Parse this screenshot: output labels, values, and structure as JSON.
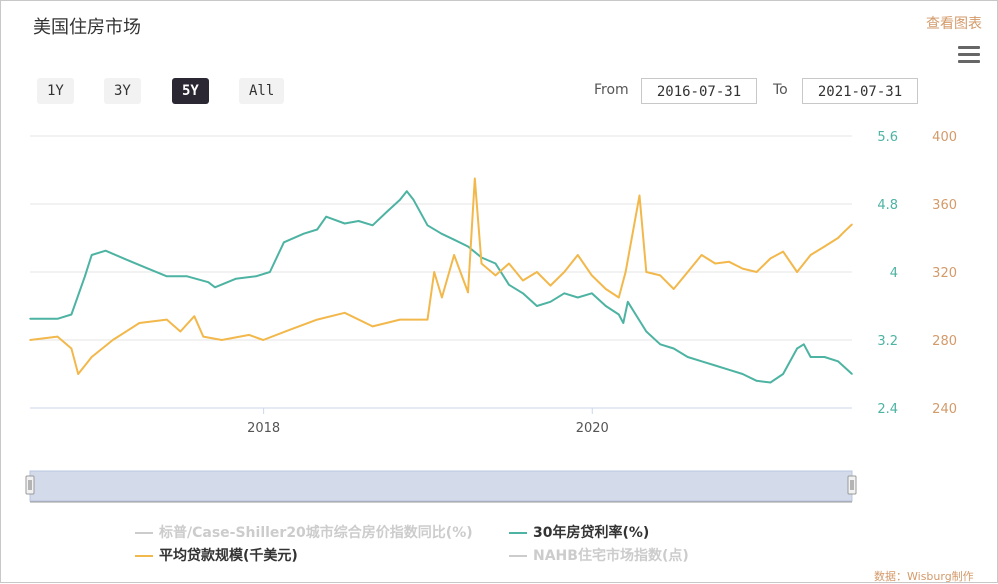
{
  "header": {
    "title": "美国住房市场",
    "view_table": "查看图表",
    "credit": "数据：Wisburg制作"
  },
  "range_selector": {
    "buttons": [
      "1Y",
      "3Y",
      "5Y",
      "All"
    ],
    "active": "5Y",
    "from_label": "From",
    "to_label": "To",
    "from_value": "2016-07-31",
    "to_value": "2021-07-31"
  },
  "legend": {
    "items": [
      {
        "label": "标普/Case-Shiller20城市综合房价指数同比(%)",
        "color": "#cccccc",
        "enabled": false
      },
      {
        "label": "30年房贷利率(%)",
        "color": "#4db3a2",
        "enabled": true
      },
      {
        "label": "平均贷款规模(千美元)",
        "color": "#f2b84b",
        "enabled": true
      },
      {
        "label": "NAHB住宅市场指数(点)",
        "color": "#cccccc",
        "enabled": false
      }
    ]
  },
  "colors": {
    "rate": "#4db3a2",
    "loan": "#f2b84b",
    "navigator": "#d3dbeb",
    "gridline": "#e6e6e6"
  },
  "chart_data": {
    "type": "line",
    "title": "美国住房市场",
    "x_range": [
      "2016-07-31",
      "2021-07-31"
    ],
    "x_ticks": [
      "2018",
      "2020"
    ],
    "y_axes": [
      {
        "name": "30年房贷利率(%)",
        "ticks": [
          "2.4",
          "3.2",
          "4",
          "4.8",
          "5.6"
        ],
        "range": [
          2.4,
          5.6
        ],
        "color": "#4db3a2"
      },
      {
        "name": "平均贷款规模(千美元)",
        "ticks": [
          "240",
          "280",
          "320",
          "360",
          "400"
        ],
        "range": [
          240,
          400
        ],
        "color": "#d39a6a"
      }
    ],
    "grid": true,
    "legend_position": "bottom",
    "series": [
      {
        "name": "30年房贷利率(%)",
        "axis": 0,
        "color": "#4db3a2",
        "x": [
          "2016-07-31",
          "2016-09-30",
          "2016-10-31",
          "2016-11-30",
          "2016-12-15",
          "2017-01-15",
          "2017-02-28",
          "2017-04-15",
          "2017-05-31",
          "2017-07-15",
          "2017-08-31",
          "2017-09-15",
          "2017-10-31",
          "2017-12-15",
          "2018-01-15",
          "2018-02-15",
          "2018-03-31",
          "2018-04-30",
          "2018-05-20",
          "2018-06-30",
          "2018-07-31",
          "2018-08-31",
          "2018-09-30",
          "2018-10-31",
          "2018-11-15",
          "2018-11-30",
          "2018-12-31",
          "2019-01-31",
          "2019-02-28",
          "2019-03-31",
          "2019-04-30",
          "2019-05-31",
          "2019-06-30",
          "2019-07-31",
          "2019-08-31",
          "2019-09-30",
          "2019-10-31",
          "2019-11-30",
          "2019-12-31",
          "2020-01-31",
          "2020-02-29",
          "2020-03-10",
          "2020-03-20",
          "2020-04-30",
          "2020-05-31",
          "2020-06-30",
          "2020-07-31",
          "2020-08-31",
          "2020-09-30",
          "2020-10-31",
          "2020-11-30",
          "2020-12-31",
          "2021-01-31",
          "2021-02-28",
          "2021-03-31",
          "2021-04-15",
          "2021-04-30",
          "2021-05-31",
          "2021-06-30",
          "2021-07-31"
        ],
        "values": [
          3.45,
          3.45,
          3.5,
          3.95,
          4.2,
          4.25,
          4.15,
          4.05,
          3.95,
          3.95,
          3.88,
          3.82,
          3.92,
          3.95,
          4.0,
          4.35,
          4.45,
          4.5,
          4.65,
          4.57,
          4.6,
          4.55,
          4.7,
          4.85,
          4.95,
          4.85,
          4.55,
          4.45,
          4.38,
          4.3,
          4.17,
          4.1,
          3.85,
          3.75,
          3.6,
          3.65,
          3.75,
          3.7,
          3.75,
          3.6,
          3.5,
          3.4,
          3.65,
          3.3,
          3.15,
          3.1,
          3.0,
          2.95,
          2.9,
          2.85,
          2.8,
          2.72,
          2.7,
          2.8,
          3.1,
          3.15,
          3.0,
          3.0,
          2.95,
          2.8
        ]
      },
      {
        "name": "平均贷款规模(千美元)",
        "axis": 1,
        "color": "#f2b84b",
        "x": [
          "2016-07-31",
          "2016-09-30",
          "2016-10-31",
          "2016-11-15",
          "2016-12-15",
          "2017-01-31",
          "2017-03-31",
          "2017-05-31",
          "2017-06-30",
          "2017-07-31",
          "2017-08-20",
          "2017-09-30",
          "2017-11-30",
          "2017-12-31",
          "2018-02-28",
          "2018-04-30",
          "2018-06-30",
          "2018-08-31",
          "2018-10-31",
          "2018-12-31",
          "2019-01-15",
          "2019-02-01",
          "2019-02-28",
          "2019-03-31",
          "2019-04-30",
          "2019-04-15",
          "2019-05-31",
          "2019-06-30",
          "2019-07-31",
          "2019-08-31",
          "2019-09-30",
          "2019-10-31",
          "2019-11-30",
          "2019-12-31",
          "2020-01-31",
          "2020-02-29",
          "2020-03-15",
          "2020-04-15",
          "2020-04-30",
          "2020-05-31",
          "2020-06-30",
          "2020-07-31",
          "2020-08-31",
          "2020-09-30",
          "2020-10-31",
          "2020-11-30",
          "2020-12-31",
          "2021-01-31",
          "2021-02-28",
          "2021-03-31",
          "2021-04-30",
          "2021-05-31",
          "2021-06-30",
          "2021-07-15",
          "2021-07-31"
        ],
        "values": [
          280,
          282,
          275,
          260,
          270,
          280,
          290,
          292,
          285,
          294,
          282,
          280,
          283,
          280,
          286,
          292,
          296,
          288,
          292,
          292,
          320,
          305,
          330,
          308,
          325,
          375,
          318,
          325,
          315,
          320,
          312,
          320,
          330,
          318,
          310,
          305,
          320,
          365,
          320,
          318,
          310,
          320,
          330,
          325,
          326,
          322,
          320,
          328,
          332,
          320,
          330,
          335,
          340,
          344,
          348
        ]
      }
    ]
  }
}
